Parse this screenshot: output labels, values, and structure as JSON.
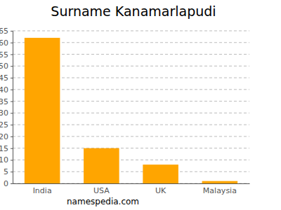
{
  "chart_data": {
    "type": "bar",
    "title": "Surname Kanamarlapudi",
    "categories": [
      "India",
      "USA",
      "UK",
      "Malaysia"
    ],
    "values": [
      62,
      15,
      8,
      1
    ],
    "color": "#ffa500",
    "ylim": [
      0,
      65
    ],
    "yticks": [
      0,
      5,
      10,
      15,
      20,
      25,
      30,
      35,
      40,
      45,
      50,
      55,
      60,
      65
    ],
    "grid": true,
    "annotations": [
      "namespedia.com"
    ]
  }
}
